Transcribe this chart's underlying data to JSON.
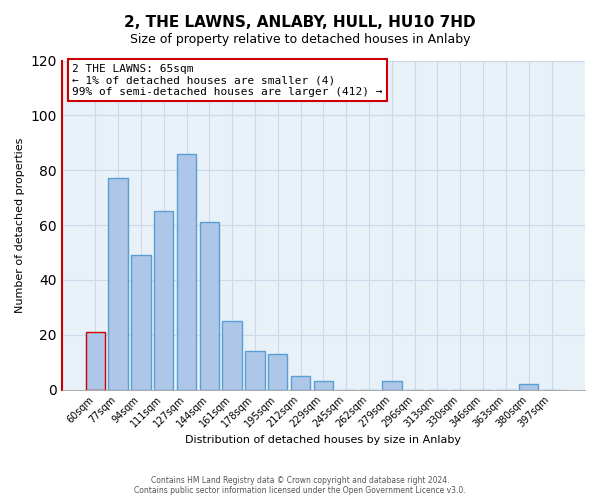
{
  "title": "2, THE LAWNS, ANLABY, HULL, HU10 7HD",
  "subtitle": "Size of property relative to detached houses in Anlaby",
  "xlabel": "Distribution of detached houses by size in Anlaby",
  "ylabel": "Number of detached properties",
  "categories": [
    "60sqm",
    "77sqm",
    "94sqm",
    "111sqm",
    "127sqm",
    "144sqm",
    "161sqm",
    "178sqm",
    "195sqm",
    "212sqm",
    "229sqm",
    "245sqm",
    "262sqm",
    "279sqm",
    "296sqm",
    "313sqm",
    "330sqm",
    "346sqm",
    "363sqm",
    "380sqm",
    "397sqm"
  ],
  "values": [
    21,
    77,
    49,
    65,
    86,
    61,
    25,
    14,
    13,
    5,
    3,
    0,
    0,
    3,
    0,
    0,
    0,
    0,
    0,
    2,
    0
  ],
  "bar_color": "#aec6e8",
  "bar_edge_color": "#5a9fd4",
  "highlight_bar_index": 0,
  "highlight_edge_color": "#cc0000",
  "annotation_box_text": "2 THE LAWNS: 65sqm\n← 1% of detached houses are smaller (4)\n99% of semi-detached houses are larger (412) →",
  "ylim": [
    0,
    120
  ],
  "yticks": [
    0,
    20,
    40,
    60,
    80,
    100,
    120
  ],
  "bg_color": "#ffffff",
  "grid_color": "#ccd9e8",
  "footer_line1": "Contains HM Land Registry data © Crown copyright and database right 2024.",
  "footer_line2": "Contains public sector information licensed under the Open Government Licence v3.0.",
  "title_fontsize": 11,
  "subtitle_fontsize": 9,
  "axis_label_fontsize": 8,
  "tick_fontsize": 7,
  "annotation_fontsize": 8
}
